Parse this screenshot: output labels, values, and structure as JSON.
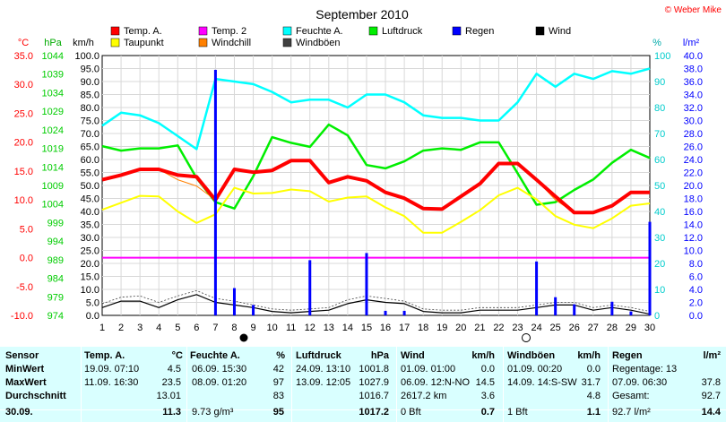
{
  "title": "September 2010",
  "copyright": "© Weber Mike",
  "legend": [
    {
      "label": "Temp. A.",
      "color": "#ff0000"
    },
    {
      "label": "Temp. 2",
      "color": "#ff00ff"
    },
    {
      "label": "Feuchte A.",
      "color": "#00ffff"
    },
    {
      "label": "Luftdruck",
      "color": "#00ee00"
    },
    {
      "label": "Regen",
      "color": "#0000ff"
    },
    {
      "label": "Wind",
      "color": "#000000"
    },
    {
      "label": "Taupunkt",
      "color": "#ffff00"
    },
    {
      "label": "Windchill",
      "color": "#ff8000"
    },
    {
      "label": "Windböen",
      "color": "#404040"
    }
  ],
  "axes": {
    "temp": {
      "unit": "°C",
      "color": "#ff0000",
      "ticks": [
        "35.0",
        "30.0",
        "25.0",
        "20.0",
        "15.0",
        "10.0",
        "5.0",
        "0.0",
        "-5.0",
        "-10.0"
      ]
    },
    "pressure": {
      "unit": "hPa",
      "color": "#00cc00",
      "ticks": [
        "1044",
        "1039",
        "1034",
        "1029",
        "1024",
        "1019",
        "1014",
        "1009",
        "1004",
        "999",
        "994",
        "989",
        "984",
        "979",
        "974"
      ]
    },
    "wind": {
      "unit": "km/h",
      "color": "#000000",
      "ticks": [
        "100.0",
        "95.0",
        "90.0",
        "85.0",
        "80.0",
        "75.0",
        "70.0",
        "65.0",
        "60.0",
        "55.0",
        "50.0",
        "45.0",
        "40.0",
        "35.0",
        "30.0",
        "25.0",
        "20.0",
        "15.0",
        "10.0",
        "5.0",
        "0.0"
      ]
    },
    "humidity": {
      "unit": "%",
      "color": "#00cccc",
      "ticks": [
        "100",
        "90",
        "80",
        "70",
        "60",
        "50",
        "40",
        "30",
        "20",
        "10",
        "0"
      ]
    },
    "rain": {
      "unit": "l/m²",
      "color": "#0000ff",
      "ticks": [
        "40.0",
        "38.0",
        "36.0",
        "34.0",
        "32.0",
        "30.0",
        "28.0",
        "26.0",
        "24.0",
        "22.0",
        "20.0",
        "18.0",
        "16.0",
        "14.0",
        "12.0",
        "10.0",
        "8.0",
        "6.0",
        "4.0",
        "2.0",
        "0.0"
      ]
    },
    "x_ticks": [
      "1",
      "2",
      "3",
      "4",
      "5",
      "6",
      "7",
      "8",
      "9",
      "10",
      "11",
      "12",
      "13",
      "14",
      "15",
      "16",
      "17",
      "18",
      "19",
      "20",
      "21",
      "22",
      "23",
      "24",
      "25",
      "26",
      "27",
      "28",
      "29",
      "30"
    ]
  },
  "chart_data": {
    "type": "line",
    "x": [
      1,
      2,
      3,
      4,
      5,
      6,
      7,
      8,
      9,
      10,
      11,
      12,
      13,
      14,
      15,
      16,
      17,
      18,
      19,
      20,
      21,
      22,
      23,
      24,
      25,
      26,
      27,
      28,
      29,
      30
    ],
    "series": [
      {
        "name": "Temp. A.",
        "axis": "temp",
        "color": "#ff0000",
        "values": [
          13.5,
          14.3,
          15.3,
          15.3,
          14.3,
          14.0,
          10.0,
          15.3,
          14.8,
          15.1,
          16.8,
          16.8,
          13.0,
          14.0,
          13.3,
          11.3,
          10.3,
          8.5,
          8.4,
          10.6,
          12.8,
          16.3,
          16.3,
          13.5,
          10.6,
          7.8,
          7.8,
          9.0,
          11.3,
          11.3
        ]
      },
      {
        "name": "Taupunkt",
        "axis": "temp",
        "color": "#ffff00",
        "values": [
          8.3,
          9.5,
          10.7,
          10.6,
          8.0,
          6.0,
          7.5,
          12.1,
          11.1,
          11.2,
          11.8,
          11.5,
          9.7,
          10.4,
          10.6,
          8.7,
          7.2,
          4.3,
          4.3,
          6.2,
          8.2,
          10.8,
          12.1,
          10.1,
          7.2,
          5.7,
          5.1,
          6.8,
          9.0,
          9.4
        ]
      },
      {
        "name": "Windchill",
        "axis": "temp",
        "color": "#ff8000",
        "values": [
          13.5,
          14.3,
          15.3,
          15.3,
          13.5,
          12.4,
          10.0,
          15.3,
          14.8,
          15.1,
          16.8,
          16.8,
          13.0,
          14.0,
          13.3,
          11.3,
          10.3,
          8.5,
          8.4,
          10.6,
          12.8,
          16.3,
          16.3,
          13.5,
          10.0,
          7.8,
          7.8,
          9.0,
          11.3,
          11.3
        ]
      },
      {
        "name": "Temp. 2",
        "axis": "temp",
        "color": "#ff00ff",
        "values": [
          0,
          0,
          0,
          0,
          0,
          0,
          0,
          0,
          0,
          0,
          0,
          0,
          0,
          0,
          0,
          0,
          0,
          0,
          0,
          0,
          0,
          0,
          0,
          0,
          0,
          0,
          0,
          0,
          0,
          0
        ]
      },
      {
        "name": "Feuchte A.",
        "axis": "humidity",
        "color": "#00ffff",
        "values": [
          73,
          78,
          77,
          74,
          69,
          64,
          91,
          90,
          89,
          86,
          82,
          83,
          83,
          80,
          85,
          85,
          82,
          77,
          76,
          76,
          75,
          75,
          82,
          93,
          88,
          93,
          91,
          94,
          93,
          95
        ]
      },
      {
        "name": "Luftdruck",
        "axis": "pressure",
        "color": "#00ee00",
        "values": [
          1019.6,
          1018.4,
          1019.0,
          1019.0,
          1019.8,
          1011.0,
          1004.5,
          1002.8,
          1011.5,
          1022.0,
          1020.5,
          1019.4,
          1025.4,
          1022.5,
          1014.5,
          1013.6,
          1015.5,
          1018.4,
          1019.0,
          1018.6,
          1020.6,
          1020.6,
          1012.3,
          1003.8,
          1004.5,
          1007.8,
          1010.6,
          1015.1,
          1018.6,
          1016.4
        ]
      },
      {
        "name": "Wind",
        "axis": "wind",
        "color": "#000000",
        "values": [
          3.0,
          5.5,
          5.5,
          3.0,
          6.0,
          8.0,
          5.0,
          4.0,
          3.0,
          1.5,
          1.0,
          1.5,
          2.0,
          4.5,
          6.0,
          5.0,
          4.5,
          1.5,
          1.0,
          1.0,
          2.0,
          2.0,
          2.0,
          3.0,
          4.0,
          4.0,
          2.0,
          3.0,
          2.0,
          0.5
        ]
      },
      {
        "name": "Windböen",
        "axis": "wind",
        "color": "#404040",
        "values": [
          4.5,
          7.0,
          7.5,
          5.0,
          7.5,
          9.5,
          6.5,
          5.5,
          4.0,
          2.5,
          2.0,
          2.5,
          3.0,
          6.0,
          7.5,
          6.5,
          5.5,
          2.5,
          2.0,
          2.0,
          3.0,
          3.0,
          3.0,
          4.0,
          5.0,
          5.0,
          3.0,
          4.0,
          3.0,
          1.5
        ]
      }
    ],
    "rain": {
      "name": "Regen",
      "axis": "rain",
      "color": "#0000ff",
      "values": [
        0,
        0,
        0,
        0,
        0,
        0,
        37.8,
        4.2,
        1.6,
        0,
        0,
        8.5,
        0,
        0,
        9.6,
        0.7,
        0.7,
        0,
        0,
        0,
        0,
        0,
        0,
        8.3,
        2.8,
        1.7,
        0,
        2.1,
        0.6,
        14.4
      ]
    },
    "reference": {
      "temp_zero": 0.0
    }
  },
  "stats": {
    "headers": [
      "Sensor",
      "Temp. A.",
      "°C",
      "Feuchte A.",
      "%",
      "Luftdruck",
      "hPa",
      "Wind",
      "km/h",
      "Windböen",
      "km/h",
      "Regen",
      "l/m²"
    ],
    "rows": [
      {
        "label": "MinWert",
        "temp_time": "19.09.  07:10",
        "temp_val": "4.5",
        "hum_time": "06.09.  15:30",
        "hum_val": "42",
        "pres_time": "24.09.  13:10",
        "pres_val": "1001.8",
        "wind_time": "01.09.  01:00",
        "wind_val": "0.0",
        "gust_time": "01.09.  00:20",
        "gust_val": "0.0",
        "rain_text": "Regentage: 13",
        "rain_val": ""
      },
      {
        "label": "MaxWert",
        "temp_time": "11.09.  16:30",
        "temp_val": "23.5",
        "hum_time": "08.09.  01:20",
        "hum_val": "97",
        "pres_time": "13.09.  12:05",
        "pres_val": "1027.9",
        "wind_time": "06.09.  12:N-NO",
        "wind_val": "14.5",
        "gust_time": "14.09.  14:S-SW",
        "gust_val": "31.7",
        "rain_text": "07.09.  06:30",
        "rain_val": "37.8"
      },
      {
        "label": "Durchschnitt",
        "temp_time": "",
        "temp_val": "13.01",
        "hum_time": "",
        "hum_val": "83",
        "pres_time": "",
        "pres_val": "1016.7",
        "wind_time": "2617.2 km",
        "wind_val": "3.6",
        "gust_time": "",
        "gust_val": "4.8",
        "rain_text": "Gesamt:",
        "rain_val": "92.7"
      },
      {
        "label": "30.09.",
        "temp_time": "",
        "temp_val": "11.3",
        "hum_time": "9.73 g/m³",
        "hum_val": "95",
        "pres_time": "",
        "pres_val": "1017.2",
        "wind_time": "0 Bft",
        "wind_val": "0.7",
        "gust_time": "1 Bft",
        "gust_val": "1.1",
        "rain_text": "92.7 l/m²",
        "rain_val": "14.4"
      }
    ]
  }
}
